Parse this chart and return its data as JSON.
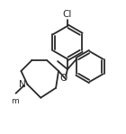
{
  "bg_color": "#ffffff",
  "line_color": "#2a2a2a",
  "line_width": 1.3,
  "fig_width": 1.4,
  "fig_height": 1.49,
  "dpi": 100,
  "xlim": [
    0,
    14
  ],
  "ylim": [
    0,
    14.9
  ],
  "cl_label": "Cl",
  "o_label": "O",
  "n_label": "N",
  "me_label": "m"
}
